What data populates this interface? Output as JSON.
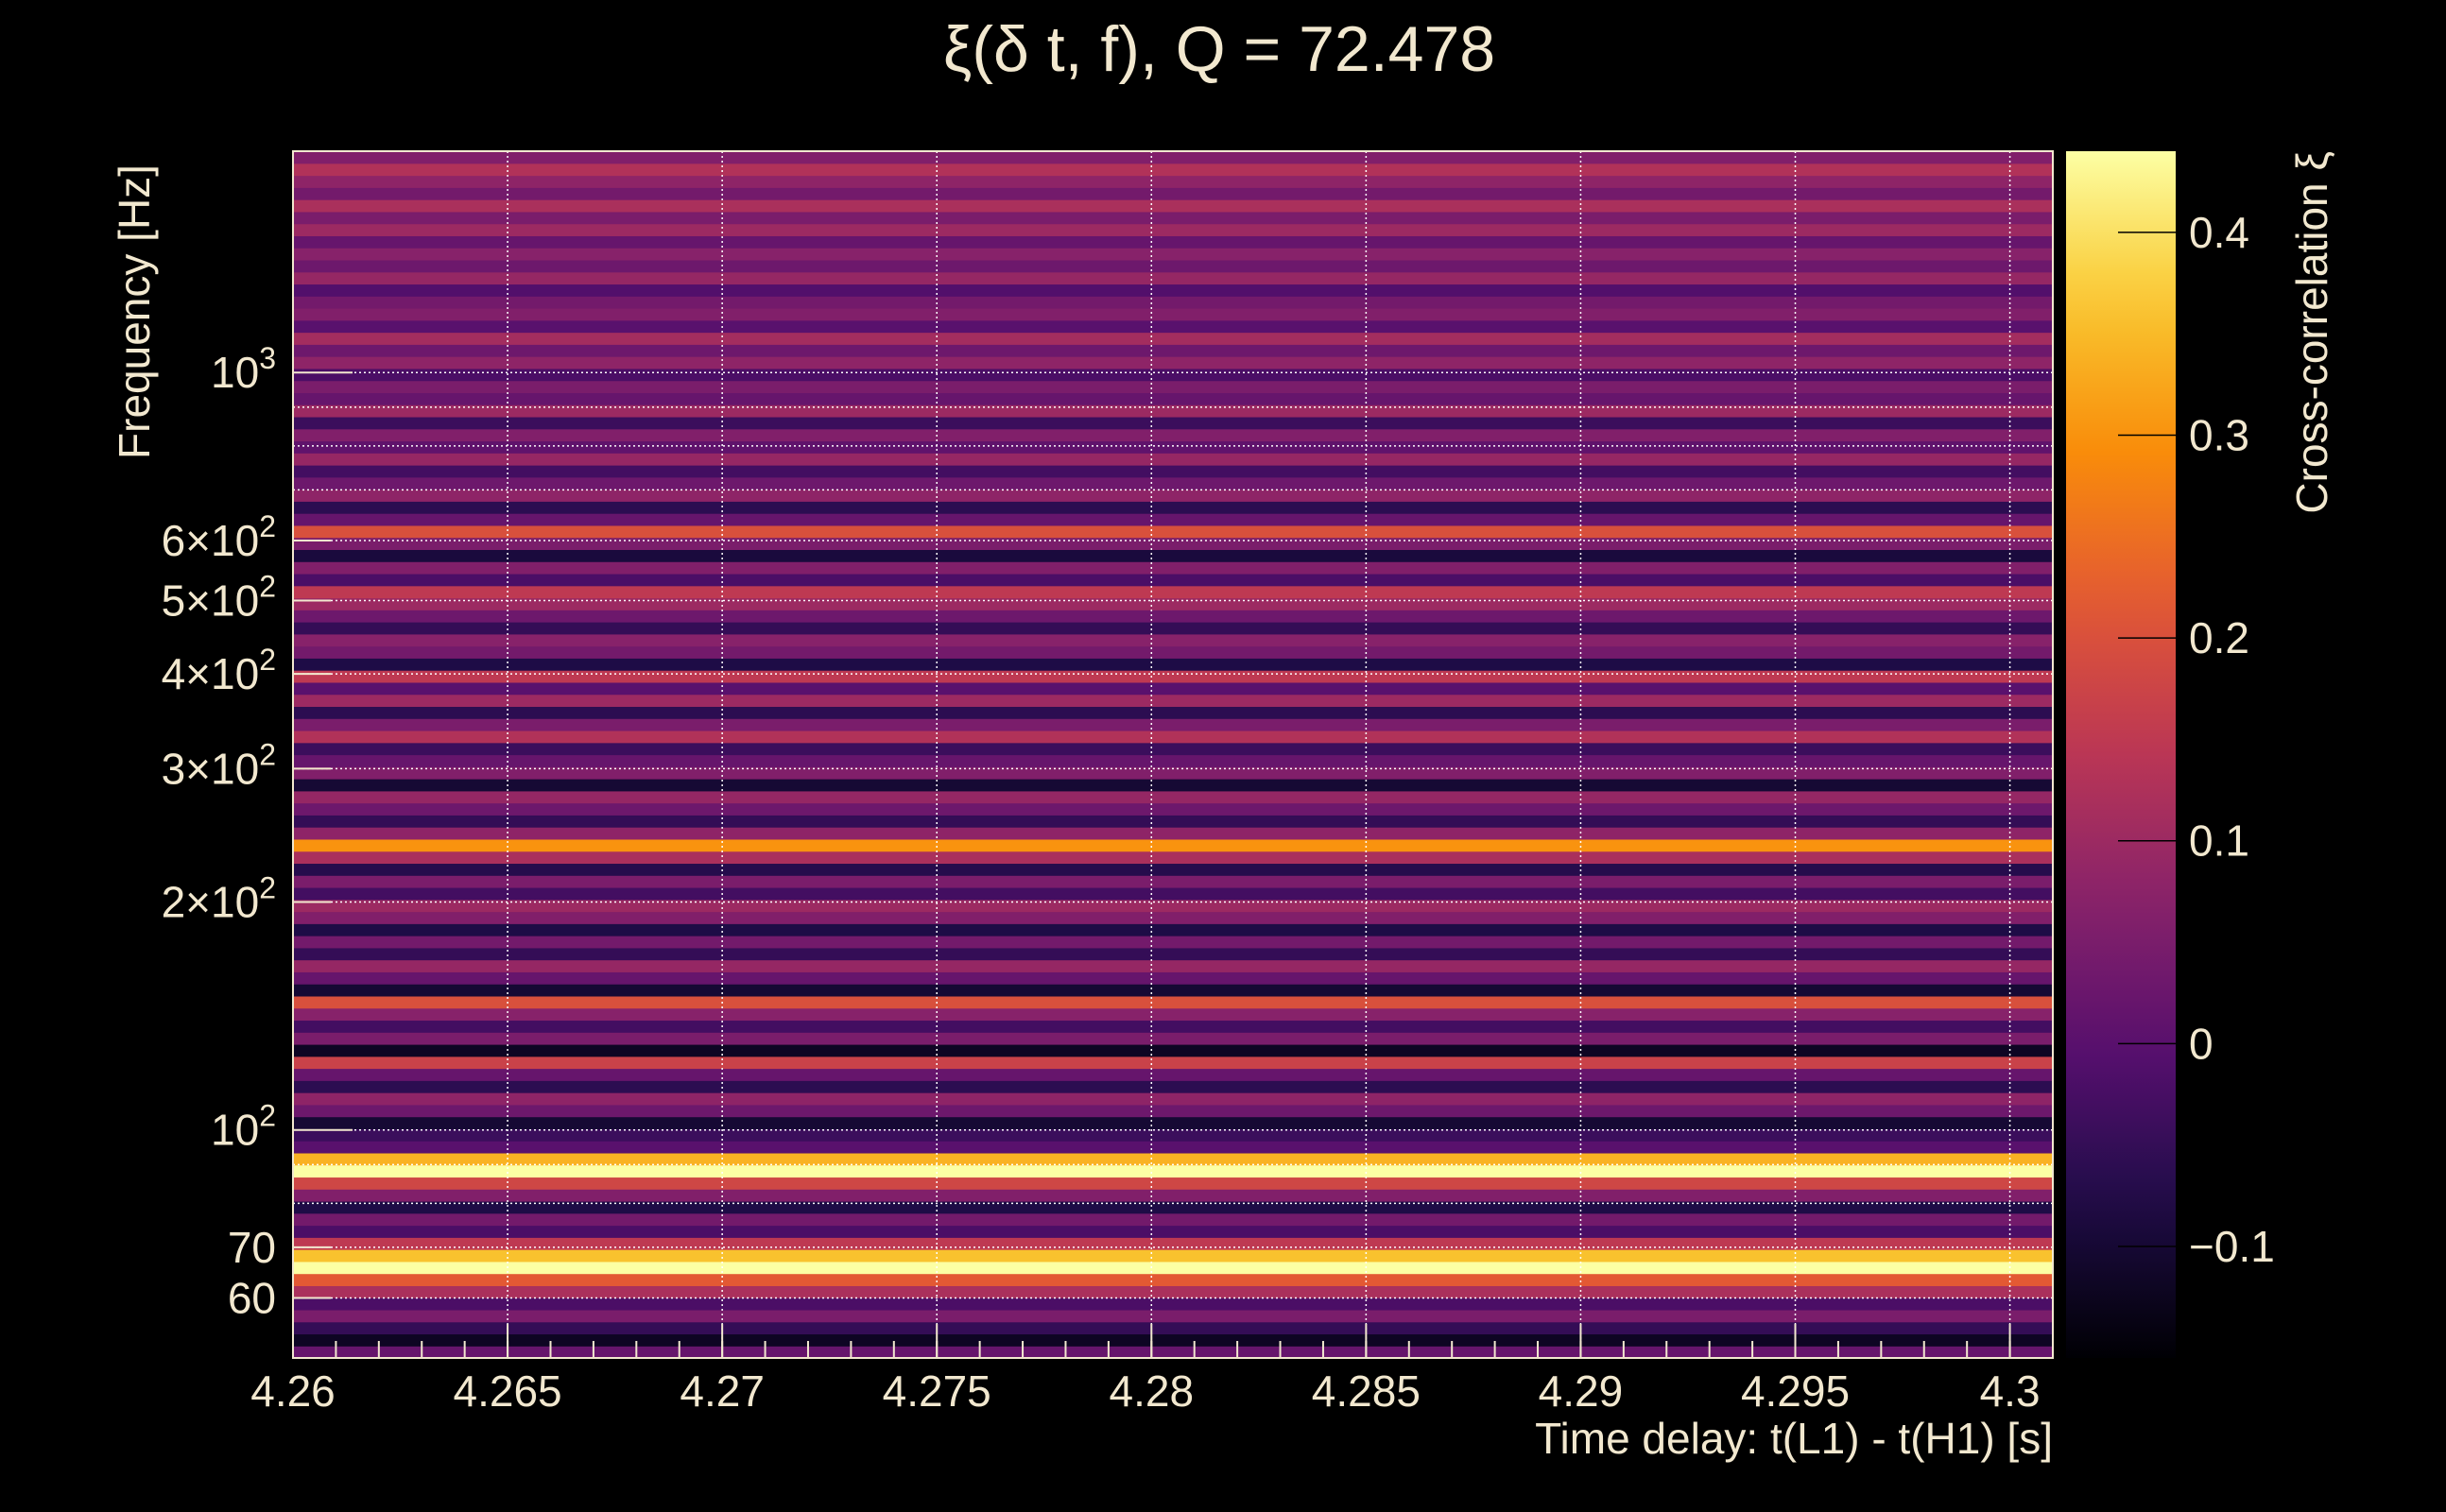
{
  "chart_data": {
    "type": "heatmap",
    "title": "ξ(δ t, f), Q = 72.478",
    "xlabel": "Time delay: t(L1) - t(H1) [s]",
    "ylabel": "Frequency [Hz]",
    "colorbar_label": "Cross-correlation ξ",
    "colormap": "inferno",
    "xlim": [
      4.26,
      4.301
    ],
    "ylim": [
      50,
      1960
    ],
    "yscale": "log",
    "clim": [
      -0.155,
      0.44
    ],
    "grid": true,
    "x_ticks": [
      4.26,
      4.265,
      4.27,
      4.275,
      4.28,
      4.285,
      4.29,
      4.295,
      4.3
    ],
    "x_tick_labels": [
      "4.26",
      "4.265",
      "4.27",
      "4.275",
      "4.28",
      "4.285",
      "4.29",
      "4.295",
      "4.3"
    ],
    "y_ticks": [
      60,
      70,
      100,
      200,
      300,
      400,
      500,
      600,
      1000
    ],
    "y_tick_labels": [
      "60",
      "70",
      "10^2",
      "2×10^2",
      "3×10^2",
      "4×10^2",
      "5×10^2",
      "6×10^2",
      "10^3"
    ],
    "y_minor_grid": [
      80,
      90,
      700,
      800,
      900
    ],
    "colorbar_ticks": [
      -0.1,
      0,
      0.1,
      0.2,
      0.3,
      0.4
    ],
    "colorbar_tick_labels": [
      "−0.1",
      "0",
      "0.1",
      "0.2",
      "0.3",
      "0.4"
    ],
    "rows_note": "cross-correlation value per frequency row, bottom (low f) to top (high f), log-spaced",
    "rows": [
      0.02,
      -0.12,
      -0.05,
      0.05,
      -0.02,
      0.12,
      0.22,
      0.44,
      0.36,
      0.15,
      -0.02,
      0.04,
      -0.08,
      0.06,
      0.18,
      0.44,
      0.34,
      0.0,
      -0.04,
      -0.1,
      0.03,
      0.08,
      -0.06,
      0.02,
      0.17,
      -0.12,
      0.05,
      -0.03,
      0.07,
      0.2,
      -0.1,
      0.02,
      0.09,
      -0.05,
      0.04,
      -0.08,
      0.06,
      0.1,
      -0.03,
      0.05,
      -0.07,
      0.12,
      0.3,
      0.08,
      -0.05,
      0.03,
      0.09,
      -0.1,
      0.06,
      0.02,
      -0.04,
      0.13,
      0.05,
      -0.06,
      0.1,
      0.0,
      0.15,
      -0.08,
      0.04,
      0.07,
      -0.05,
      0.03,
      0.1,
      0.15,
      -0.02,
      0.06,
      -0.09,
      0.05,
      0.2,
      0.02,
      -0.06,
      0.08,
      0.03,
      -0.03,
      0.09,
      0.01,
      0.06,
      -0.04,
      0.1,
      0.02,
      0.05,
      -0.02,
      0.08,
      0.03,
      0.11,
      0.0,
      0.06,
      0.04,
      -0.01,
      0.09,
      0.03,
      0.07,
      0.02,
      0.1,
      0.05,
      0.12,
      0.04,
      0.08,
      0.13,
      0.06
    ]
  }
}
